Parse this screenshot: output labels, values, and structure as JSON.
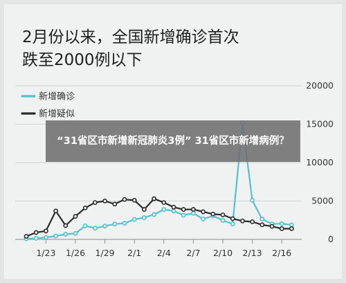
{
  "title_lines": [
    "2月份以来，全国新增确诊首次",
    "跌至2000例以下"
  ],
  "overlay_text": "“31省区市新增新冠肺炎3例” 31省区市新增病例？",
  "colors": {
    "confirmed": "#4ec3cf",
    "suspected": "#2a2a2a",
    "background": "#f0f1f1",
    "grid": "#cfd3d3"
  },
  "chart_data": {
    "type": "line",
    "title": "2月份以来，全国新增确诊首次跌至2000例以下",
    "x_tick_labels": [
      "1/23",
      "1/26",
      "1/29",
      "2/1",
      "2/4",
      "2/7",
      "2/10",
      "2/13",
      "2/16"
    ],
    "x_dates": [
      "1/21",
      "1/22",
      "1/23",
      "1/24",
      "1/25",
      "1/26",
      "1/27",
      "1/28",
      "1/29",
      "1/30",
      "1/31",
      "2/1",
      "2/2",
      "2/3",
      "2/4",
      "2/5",
      "2/6",
      "2/7",
      "2/8",
      "2/9",
      "2/10",
      "2/11",
      "2/12",
      "2/13",
      "2/14",
      "2/15",
      "2/16",
      "2/17"
    ],
    "ylim": [
      0,
      20000
    ],
    "y_ticks": [
      0,
      5000,
      10000,
      15000,
      20000
    ],
    "legend_position": "top-left",
    "grid": true,
    "series": [
      {
        "name": "新增确诊",
        "color": "#4ec3cf",
        "values": [
          80,
          150,
          260,
          440,
          680,
          770,
          1770,
          1460,
          1740,
          2000,
          2100,
          2600,
          2830,
          3240,
          3890,
          3700,
          3140,
          3400,
          2660,
          3060,
          2480,
          2010,
          15150,
          5090,
          2640,
          2010,
          2050,
          1890
        ]
      },
      {
        "name": "新增疑似",
        "color": "#2a2a2a",
        "values": [
          400,
          900,
          1100,
          3700,
          1800,
          3000,
          4100,
          4800,
          5000,
          4600,
          5200,
          5100,
          3900,
          5300,
          4800,
          4200,
          3900,
          3900,
          3600,
          3300,
          3200,
          2700,
          2400,
          2300,
          1900,
          1700,
          1400,
          1400
        ]
      }
    ]
  }
}
